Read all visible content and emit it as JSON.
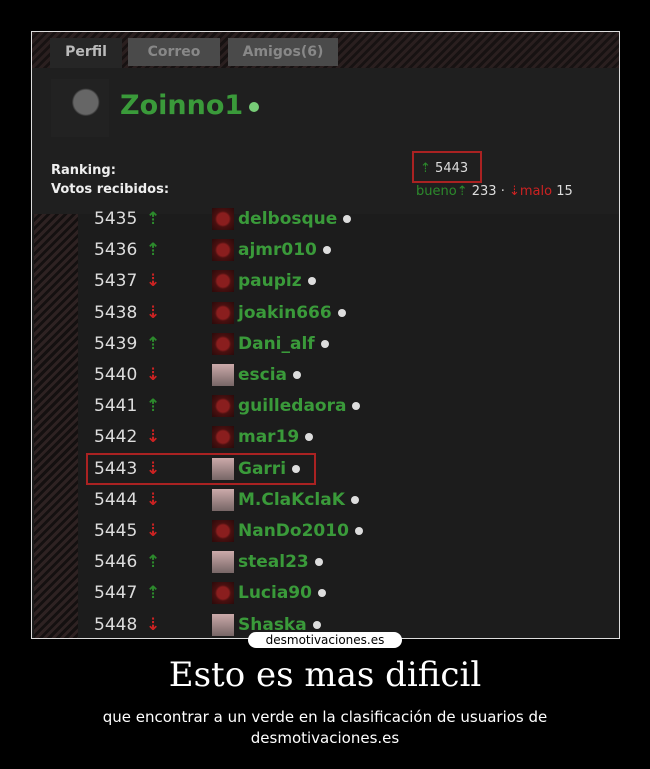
{
  "tabs": [
    "Perfil",
    "Correo",
    "Amigos(6)"
  ],
  "profile": {
    "username": "Zoinno1",
    "ranking_label": "Ranking:",
    "votes_label": "Votos recibidos:",
    "ranking_value": "5443",
    "good_label": "bueno",
    "good_count": "233",
    "separator": "·",
    "bad_label": "malo",
    "bad_count": "15"
  },
  "arrows": {
    "up": "⇡",
    "down": "⇣"
  },
  "rows": [
    {
      "rank": "5435",
      "dir": "up",
      "name": "delbosque"
    },
    {
      "rank": "5436",
      "dir": "up",
      "name": "ajmr010"
    },
    {
      "rank": "5437",
      "dir": "down",
      "name": "paupiz"
    },
    {
      "rank": "5438",
      "dir": "down",
      "name": "joakin666"
    },
    {
      "rank": "5439",
      "dir": "up",
      "name": "Dani_alf"
    },
    {
      "rank": "5440",
      "dir": "down",
      "name": "escia"
    },
    {
      "rank": "5441",
      "dir": "up",
      "name": "guilledaora"
    },
    {
      "rank": "5442",
      "dir": "down",
      "name": "mar19"
    },
    {
      "rank": "5443",
      "dir": "down",
      "name": "Garri",
      "highlight": true
    },
    {
      "rank": "5444",
      "dir": "down",
      "name": "M.ClaKclaK"
    },
    {
      "rank": "5445",
      "dir": "down",
      "name": "NanDo2010"
    },
    {
      "rank": "5446",
      "dir": "up",
      "name": "steal23"
    },
    {
      "rank": "5447",
      "dir": "up",
      "name": "Lucia90"
    },
    {
      "rank": "5448",
      "dir": "down",
      "name": "Shaska"
    }
  ],
  "watermark": "desmotivaciones.es",
  "caption": {
    "title": "Esto es mas dificil",
    "subtitle": "que encontrar a un verde en la clasificación de usuarios de desmotivaciones.es"
  },
  "colors": {
    "up": "#2c8a2c",
    "down": "#cc2222",
    "username": "#3a9a3a"
  }
}
